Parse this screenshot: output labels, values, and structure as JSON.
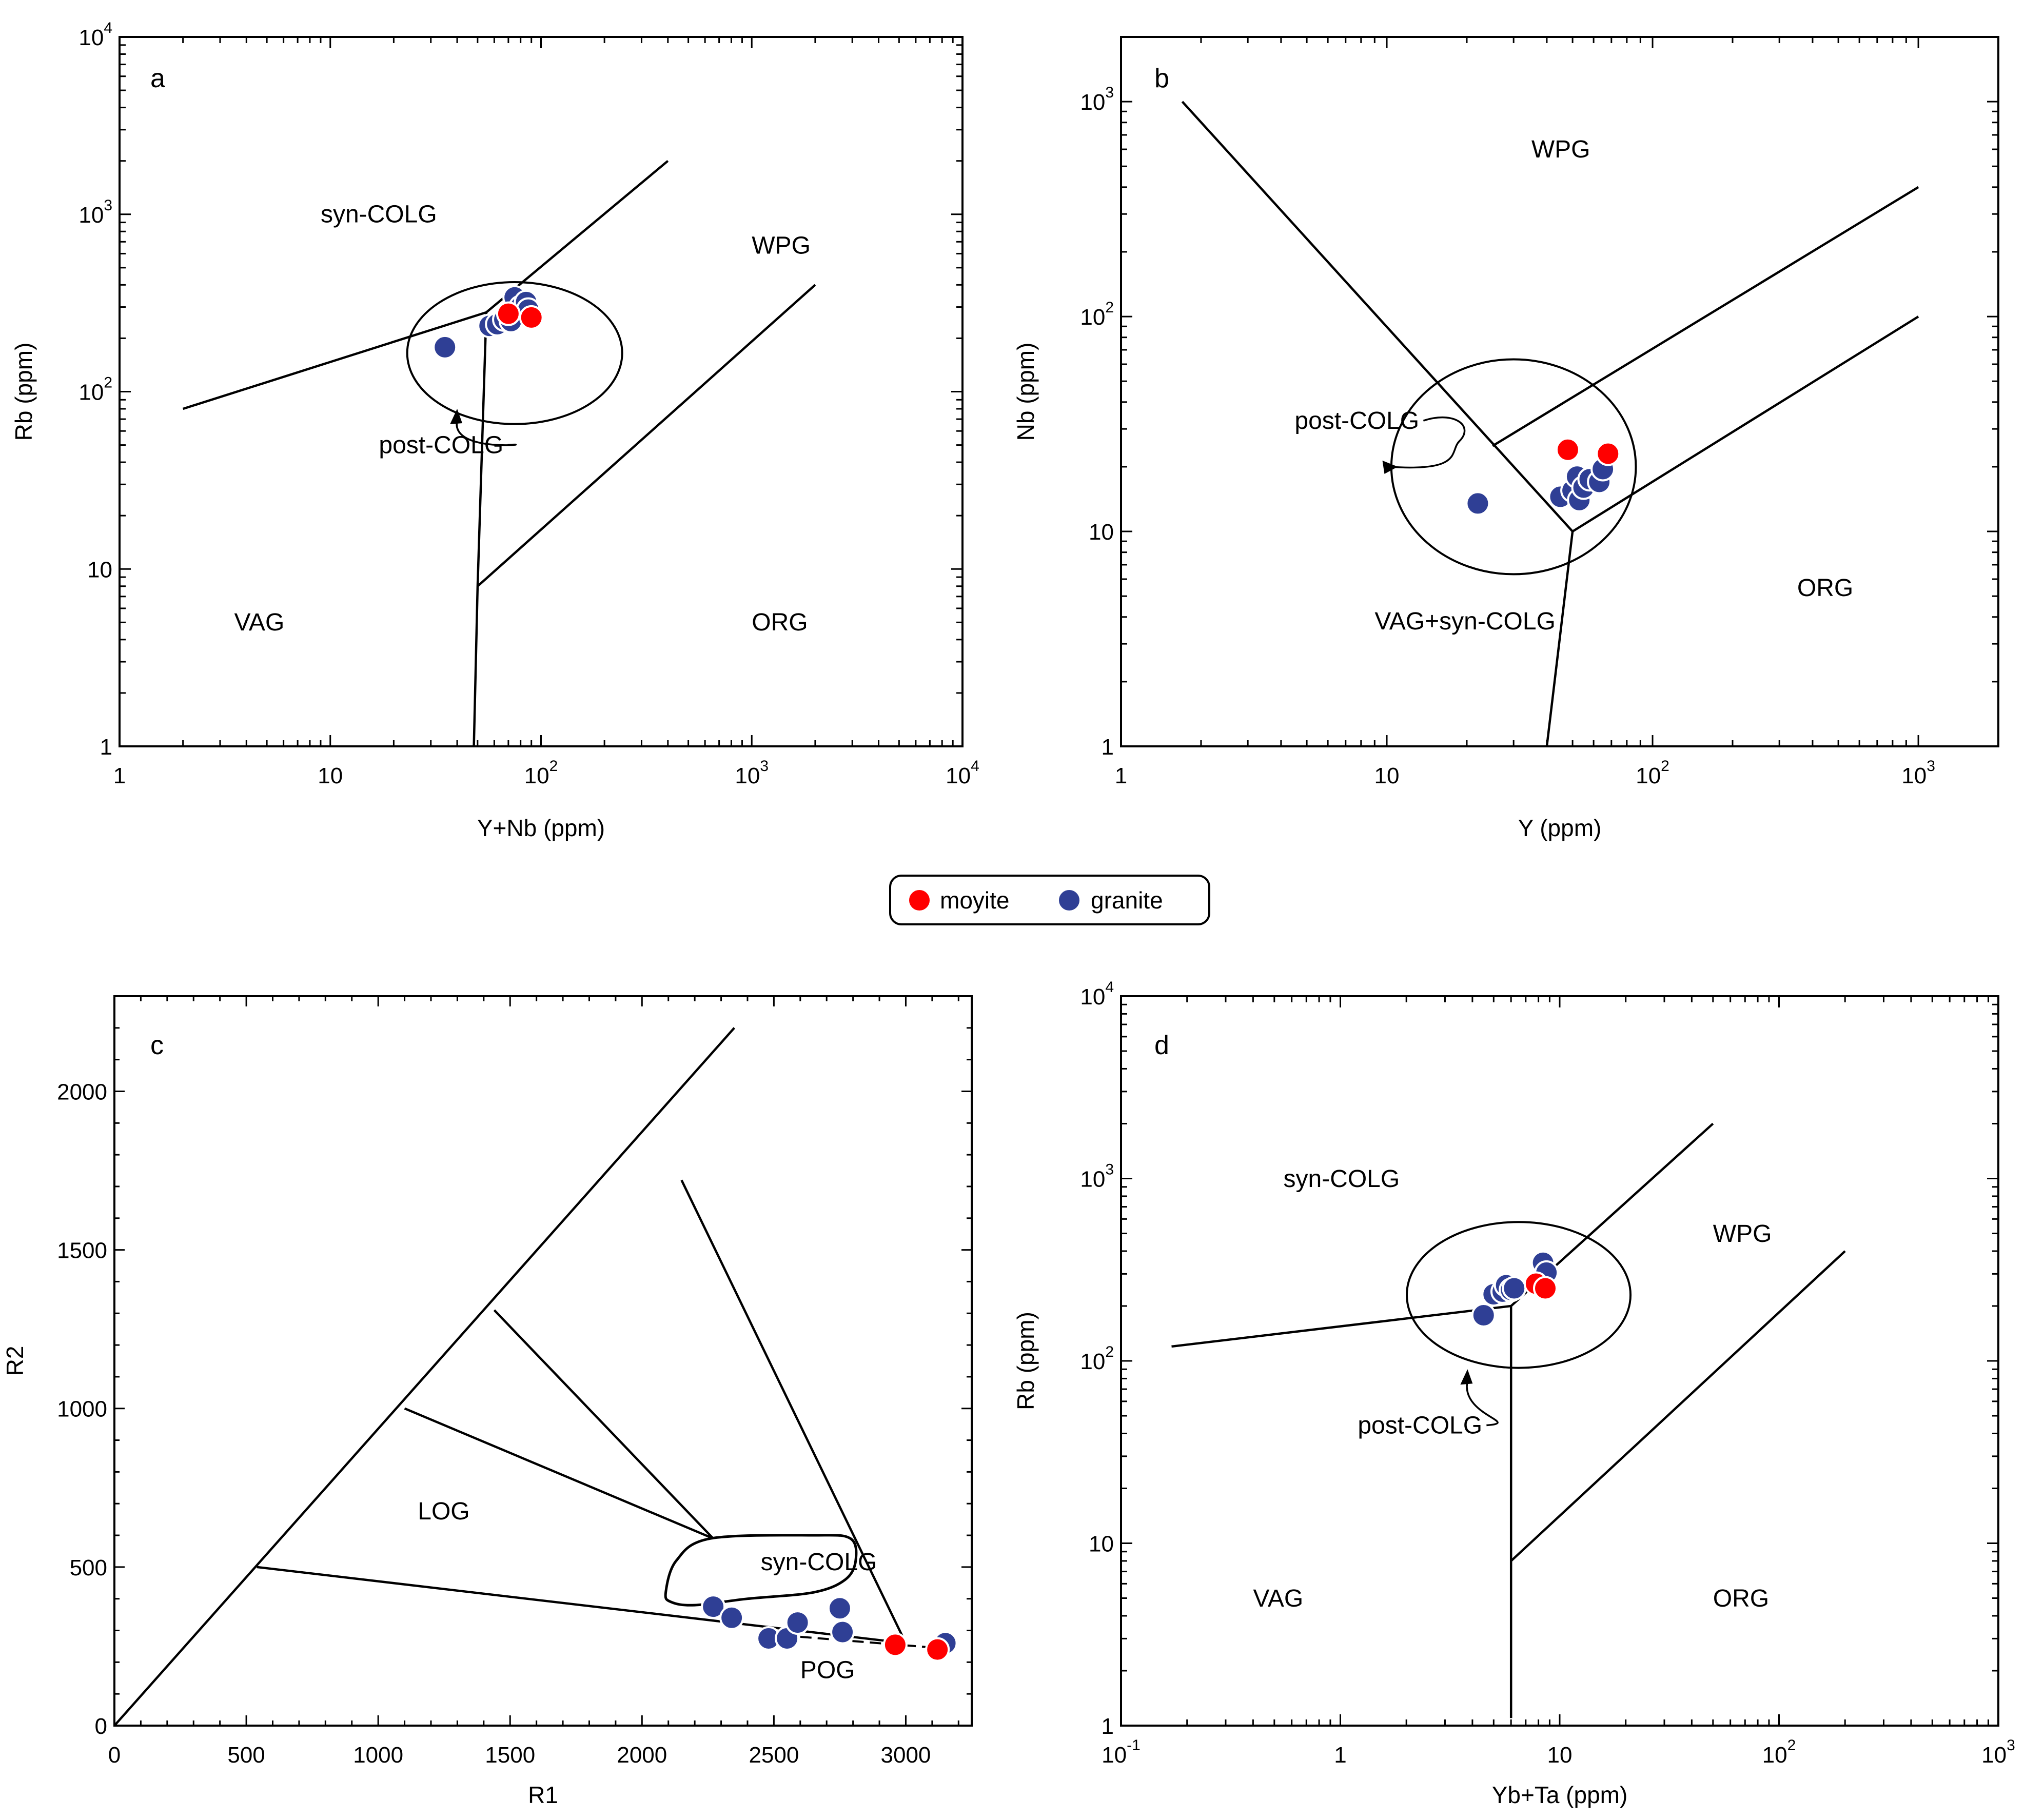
{
  "legend": {
    "items": [
      {
        "label": "moyite",
        "color": "#ff0000"
      },
      {
        "label": "granite",
        "color": "#2f3f95"
      }
    ]
  },
  "chart_data": [
    {
      "id": "a",
      "type": "scatter",
      "panel_label": "a",
      "xlabel": "Y+Nb (ppm)",
      "ylabel": "Rb (ppm)",
      "xscale": "log",
      "yscale": "log",
      "xlim": [
        1,
        10000
      ],
      "ylim": [
        1,
        10000
      ],
      "xticks": [
        {
          "base": "1",
          "exp": ""
        },
        {
          "base": "10",
          "exp": ""
        },
        {
          "base": "10",
          "exp": "2"
        },
        {
          "base": "10",
          "exp": "3"
        },
        {
          "base": "10",
          "exp": "4"
        }
      ],
      "yticks": [
        {
          "base": "1",
          "exp": ""
        },
        {
          "base": "10",
          "exp": ""
        },
        {
          "base": "10",
          "exp": "2"
        },
        {
          "base": "10",
          "exp": "3"
        },
        {
          "base": "10",
          "exp": "4"
        }
      ],
      "boundaries": [
        [
          [
            2,
            80
          ],
          [
            55,
            280
          ],
          [
            400,
            2000
          ]
        ],
        [
          [
            55,
            280
          ],
          [
            50,
            8
          ],
          [
            48,
            1
          ]
        ],
        [
          [
            50,
            8
          ],
          [
            2000,
            400
          ]
        ]
      ],
      "field_ellipse": {
        "cx": 75,
        "cy": 165,
        "rx_decades": 0.51,
        "ry_decades": 0.4
      },
      "regions": [
        {
          "label": "syn-COLG",
          "x": 9,
          "y": 900
        },
        {
          "label": "WPG",
          "x": 1000,
          "y": 600
        },
        {
          "label": "VAG",
          "x": 3.5,
          "y": 4.5
        },
        {
          "label": "ORG",
          "x": 1000,
          "y": 4.5
        }
      ],
      "annotation": {
        "label": "post-COLG",
        "x": 17,
        "y": 45,
        "arrow_to": [
          40,
          80
        ]
      },
      "series": [
        {
          "name": "granite",
          "color": "#2f3f95",
          "points": [
            [
              35,
              178
            ],
            [
              57,
              235
            ],
            [
              62,
              240
            ],
            [
              67,
              255
            ],
            [
              72,
              250
            ],
            [
              75,
              340
            ],
            [
              80,
              300
            ],
            [
              85,
              320
            ],
            [
              87,
              290
            ]
          ]
        },
        {
          "name": "moyite",
          "color": "#ff0000",
          "points": [
            [
              70,
              275
            ],
            [
              90,
              262
            ]
          ]
        }
      ]
    },
    {
      "id": "b",
      "type": "scatter",
      "panel_label": "b",
      "xlabel": "Y (ppm)",
      "ylabel": "Nb (ppm)",
      "xscale": "log",
      "yscale": "log",
      "xlim": [
        1,
        2000
      ],
      "ylim": [
        1,
        2000
      ],
      "xticks": [
        {
          "base": "1",
          "exp": ""
        },
        {
          "base": "10",
          "exp": ""
        },
        {
          "base": "10",
          "exp": "2"
        },
        {
          "base": "10",
          "exp": "3"
        }
      ],
      "yticks": [
        {
          "base": "1",
          "exp": ""
        },
        {
          "base": "10",
          "exp": ""
        },
        {
          "base": "10",
          "exp": "2"
        },
        {
          "base": "10",
          "exp": "3"
        }
      ],
      "boundaries": [
        [
          [
            1.7,
            1000
          ],
          [
            50,
            10
          ]
        ],
        [
          [
            50,
            10
          ],
          [
            40,
            1
          ]
        ],
        [
          [
            50,
            10
          ],
          [
            1000,
            100
          ]
        ],
        [
          [
            25,
            25
          ],
          [
            1000,
            400
          ]
        ]
      ],
      "field_ellipse": {
        "cx": 30,
        "cy": 20,
        "rx_decades": 0.46,
        "ry_decades": 0.5
      },
      "regions": [
        {
          "label": "WPG",
          "x": 35,
          "y": 550
        },
        {
          "label": "VAG+syn-COLG",
          "x": 9,
          "y": 3.5
        },
        {
          "label": "ORG",
          "x": 350,
          "y": 5
        }
      ],
      "annotation": {
        "label": "post-COLG",
        "x": 4.5,
        "y": 30,
        "arrow_to": [
          11,
          20
        ]
      },
      "series": [
        {
          "name": "granite",
          "color": "#2f3f95",
          "points": [
            [
              22,
              13.5
            ],
            [
              45,
              14.5
            ],
            [
              50,
              15.5
            ],
            [
              52,
              18
            ],
            [
              53,
              14
            ],
            [
              55,
              16
            ],
            [
              58,
              17.5
            ],
            [
              63,
              17
            ],
            [
              65,
              19.5
            ]
          ]
        },
        {
          "name": "moyite",
          "color": "#ff0000",
          "points": [
            [
              48,
              24
            ],
            [
              68,
              23
            ]
          ]
        }
      ]
    },
    {
      "id": "c",
      "type": "scatter",
      "panel_label": "c",
      "xlabel": "R1",
      "ylabel": "R2",
      "xscale": "linear",
      "yscale": "linear",
      "xlim": [
        0,
        3250
      ],
      "ylim": [
        0,
        2300
      ],
      "xticks": [
        {
          "base": "0",
          "exp": ""
        },
        {
          "base": "500",
          "exp": ""
        },
        {
          "base": "1000",
          "exp": ""
        },
        {
          "base": "1500",
          "exp": ""
        },
        {
          "base": "2000",
          "exp": ""
        },
        {
          "base": "2500",
          "exp": ""
        },
        {
          "base": "3000",
          "exp": ""
        }
      ],
      "yticks": [
        {
          "base": "0",
          "exp": ""
        },
        {
          "base": "500",
          "exp": ""
        },
        {
          "base": "1000",
          "exp": ""
        },
        {
          "base": "1500",
          "exp": ""
        },
        {
          "base": "2000",
          "exp": ""
        }
      ],
      "boundaries": [
        [
          [
            0,
            0
          ],
          [
            2350,
            2200
          ]
        ],
        [
          [
            540,
            500
          ],
          [
            3000,
            260
          ]
        ],
        [
          [
            1100,
            1000
          ],
          [
            2270,
            590
          ]
        ],
        [
          [
            1440,
            1310
          ],
          [
            2270,
            590
          ]
        ],
        [
          [
            2150,
            1720
          ],
          [
            3000,
            260
          ]
        ]
      ],
      "syn_colg_field": [
        [
          2090,
          420
        ],
        [
          2130,
          520
        ],
        [
          2260,
          590
        ],
        [
          2650,
          600
        ],
        [
          2790,
          590
        ],
        [
          2810,
          520
        ],
        [
          2770,
          460
        ],
        [
          2650,
          420
        ],
        [
          2400,
          400
        ],
        [
          2200,
          380
        ],
        [
          2110,
          390
        ]
      ],
      "regions": [
        {
          "label": "LOG",
          "x": 1150,
          "y": 650
        },
        {
          "label": "syn-COLG",
          "x": 2450,
          "y": 490
        },
        {
          "label": "POG",
          "x": 2600,
          "y": 150
        }
      ],
      "series": [
        {
          "name": "granite",
          "color": "#2f3f95",
          "points": [
            [
              2270,
              375
            ],
            [
              2340,
              340
            ],
            [
              2480,
              275
            ],
            [
              2550,
              275
            ],
            [
              2590,
              325
            ],
            [
              2750,
              370
            ],
            [
              2760,
              295
            ],
            [
              3150,
              260
            ]
          ]
        },
        {
          "name": "moyite",
          "color": "#ff0000",
          "points": [
            [
              2960,
              255
            ],
            [
              3120,
              240
            ]
          ]
        }
      ]
    },
    {
      "id": "d",
      "type": "scatter",
      "panel_label": "d",
      "xlabel": "Yb+Ta (ppm)",
      "ylabel": "Rb (ppm)",
      "xscale": "log",
      "yscale": "log",
      "xlim": [
        0.1,
        1000
      ],
      "ylim": [
        1,
        10000
      ],
      "xticks": [
        {
          "base": "10",
          "exp": "-1"
        },
        {
          "base": "1",
          "exp": ""
        },
        {
          "base": "10",
          "exp": ""
        },
        {
          "base": "10",
          "exp": "2"
        },
        {
          "base": "10",
          "exp": "3"
        }
      ],
      "yticks": [
        {
          "base": "1",
          "exp": ""
        },
        {
          "base": "10",
          "exp": ""
        },
        {
          "base": "10",
          "exp": "2"
        },
        {
          "base": "10",
          "exp": "3"
        },
        {
          "base": "10",
          "exp": "4"
        }
      ],
      "boundaries": [
        [
          [
            0.17,
            120
          ],
          [
            6,
            200
          ],
          [
            50,
            2000
          ]
        ],
        [
          [
            6,
            200
          ],
          [
            6,
            1.1
          ]
        ],
        [
          [
            6,
            8
          ],
          [
            200,
            400
          ]
        ]
      ],
      "field_ellipse": {
        "cx": 6.5,
        "cy": 230,
        "rx_decades": 0.51,
        "ry_decades": 0.4
      },
      "regions": [
        {
          "label": "syn-COLG",
          "x": 0.55,
          "y": 900
        },
        {
          "label": "WPG",
          "x": 50,
          "y": 450
        },
        {
          "label": "VAG",
          "x": 0.4,
          "y": 4.5
        },
        {
          "label": "ORG",
          "x": 50,
          "y": 4.5
        }
      ],
      "annotation": {
        "label": "post-COLG",
        "x": 1.2,
        "y": 40,
        "arrow_to": [
          3.8,
          90
        ]
      },
      "series": [
        {
          "name": "granite",
          "color": "#2f3f95",
          "points": [
            [
              4.5,
              178
            ],
            [
              5.0,
              232
            ],
            [
              5.5,
              240
            ],
            [
              5.7,
              260
            ],
            [
              6.0,
              245
            ],
            [
              6.2,
              250
            ],
            [
              8.4,
              345
            ],
            [
              8.7,
              305
            ]
          ]
        },
        {
          "name": "moyite",
          "color": "#ff0000",
          "points": [
            [
              7.8,
              265
            ],
            [
              8.6,
              250
            ]
          ]
        }
      ]
    }
  ]
}
